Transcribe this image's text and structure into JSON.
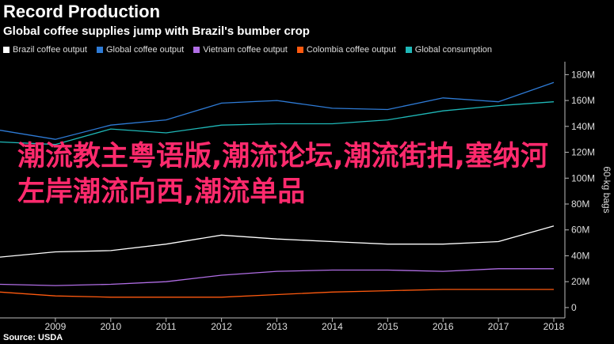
{
  "header": {
    "title": "Record Production",
    "subtitle": "Global coffee supplies jump with Brazil's bumber crop"
  },
  "source": "Source: USDA",
  "overlay_text": "潮流教主粤语版,潮流论坛,潮流街拍,塞纳河左岸潮流向西,潮流单品",
  "chart_data": {
    "type": "line",
    "title": "Record Production",
    "subtitle": "Global coffee supplies jump with Brazil's bumber crop",
    "xlabel": "",
    "ylabel": "60-kg bags",
    "x": [
      2008,
      2009,
      2010,
      2011,
      2012,
      2013,
      2014,
      2015,
      2016,
      2017,
      2018
    ],
    "x_ticks": [
      "2009",
      "2010",
      "2011",
      "2012",
      "2013",
      "2014",
      "2015",
      "2016",
      "2017",
      "2018"
    ],
    "y_ticks": [
      "0",
      "20M",
      "40M",
      "60M",
      "80M",
      "100M",
      "120M",
      "140M",
      "160M",
      "180M"
    ],
    "xlim": [
      2008,
      2018.2
    ],
    "ylim": [
      -8,
      190
    ],
    "legend_position": "top",
    "grid": false,
    "series": [
      {
        "name": "Brazil coffee output",
        "color": "#ffffff",
        "values": [
          39,
          43,
          44,
          49,
          56,
          53,
          51,
          49,
          49,
          51,
          63
        ]
      },
      {
        "name": "Global coffee output",
        "color": "#2e7bd6",
        "values": [
          137,
          130,
          141,
          145,
          158,
          160,
          154,
          153,
          162,
          159,
          174
        ]
      },
      {
        "name": "Vietnam coffee output",
        "color": "#b16ee6",
        "values": [
          18,
          17,
          18,
          20,
          25,
          28,
          29,
          29,
          28,
          30,
          30
        ]
      },
      {
        "name": "Colombia coffee output",
        "color": "#ff5a0f",
        "values": [
          12,
          9,
          8,
          8,
          8,
          10,
          12,
          13,
          14,
          14,
          14
        ]
      },
      {
        "name": "Global consumption",
        "color": "#1fb8b8",
        "values": [
          128,
          126,
          138,
          135,
          141,
          142,
          142,
          145,
          152,
          156,
          159
        ]
      }
    ]
  }
}
